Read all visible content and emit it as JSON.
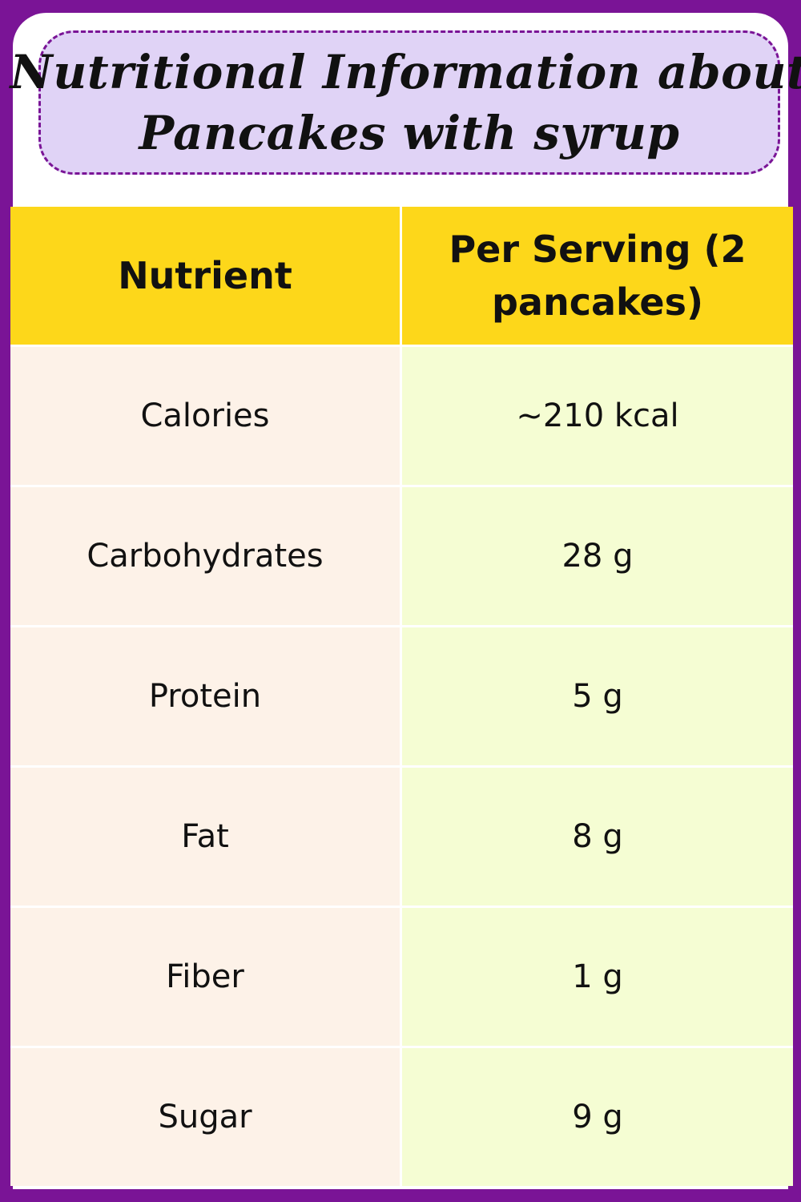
{
  "title": {
    "line1": "Nutritional Information about",
    "line2": "Pancakes with syrup"
  },
  "table": {
    "headers": [
      "Nutrient",
      "Per Serving (2 pancakes)"
    ],
    "rows": [
      {
        "nutrient": "Calories",
        "value": "~210 kcal"
      },
      {
        "nutrient": "Carbohydrates",
        "value": "28 g"
      },
      {
        "nutrient": "Protein",
        "value": "5 g"
      },
      {
        "nutrient": "Fat",
        "value": "8 g"
      },
      {
        "nutrient": "Fiber",
        "value": "1 g"
      },
      {
        "nutrient": "Sugar",
        "value": "9 g"
      }
    ]
  },
  "colors": {
    "frame": "#7a1496",
    "title_bg": "#e0d3f6",
    "header_bg": "#fdd71a",
    "nutrient_col_bg": "#fdf2e8",
    "value_col_bg": "#f5fdd3"
  }
}
